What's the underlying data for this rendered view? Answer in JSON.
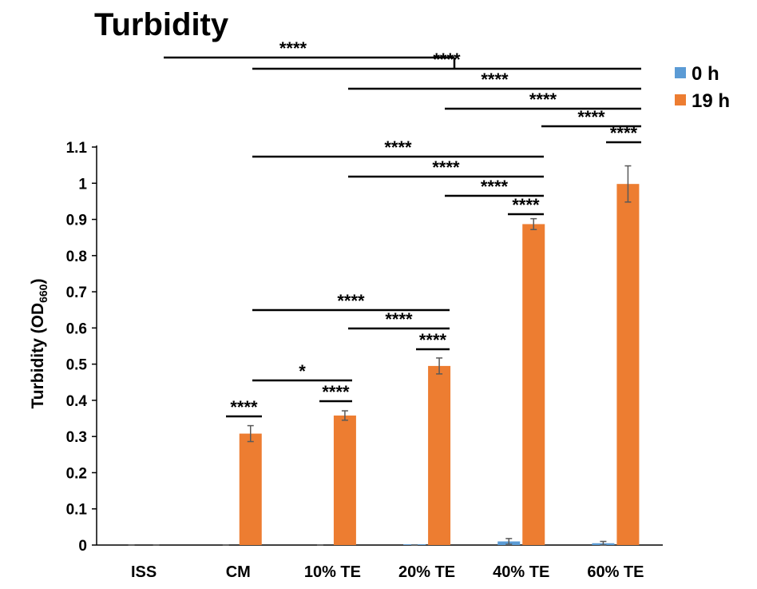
{
  "chart_data": {
    "type": "bar",
    "title": "Turbidity",
    "ylabel": "Turbidity (OD",
    "ylabel_sub": "660",
    "ylabel_close": ")",
    "xlabel": "",
    "ylim": [
      0,
      1.1
    ],
    "yticks": [
      {
        "value": 0,
        "label": "0"
      },
      {
        "value": 0.1,
        "label": "0.1"
      },
      {
        "value": 0.2,
        "label": "0.2"
      },
      {
        "value": 0.3,
        "label": "0.3"
      },
      {
        "value": 0.4,
        "label": "0.4"
      },
      {
        "value": 0.5,
        "label": "0.5"
      },
      {
        "value": 0.6,
        "label": "0.6"
      },
      {
        "value": 0.7,
        "label": "0.7"
      },
      {
        "value": 0.8,
        "label": "0.8"
      },
      {
        "value": 0.9,
        "label": "0.9"
      },
      {
        "value": 1,
        "label": "1"
      },
      {
        "value": 1.1,
        "label": "1.1"
      }
    ],
    "categories": [
      "ISS",
      "CM",
      "10%  TE",
      "20%  TE",
      "40%  TE",
      "60%  TE"
    ],
    "series": [
      {
        "name": "0 h",
        "color": "#5b9bd5",
        "values": [
          0,
          0,
          0,
          0.002,
          0.01,
          0.005
        ],
        "errors": [
          0,
          0,
          0,
          0,
          0.008,
          0.005
        ]
      },
      {
        "name": "19 h",
        "color": "#ed7d31",
        "values": [
          0,
          0.308,
          0.358,
          0.495,
          0.887,
          0.998
        ],
        "errors": [
          0,
          0.022,
          0.013,
          0.022,
          0.015,
          0.05
        ]
      }
    ],
    "legend_position": "top-right",
    "grid": false,
    "significance": [
      {
        "from": 0,
        "to": "all",
        "label": "****"
      },
      {
        "from": 1,
        "to": 5,
        "label": "****"
      },
      {
        "from": 2,
        "to": 5,
        "label": "****"
      },
      {
        "from": 3,
        "to": 5,
        "label": "****"
      },
      {
        "from": 4,
        "to": 5,
        "label": "****"
      },
      {
        "from": 5,
        "to": 5,
        "label": "****"
      },
      {
        "from": 1,
        "to": 4,
        "label": "****"
      },
      {
        "from": 2,
        "to": 4,
        "label": "****"
      },
      {
        "from": 3,
        "to": 4,
        "label": "****"
      },
      {
        "from": 4,
        "to": 4,
        "label": "****"
      },
      {
        "from": 1,
        "to": 3,
        "label": "****"
      },
      {
        "from": 2,
        "to": 3,
        "label": "****"
      },
      {
        "from": 3,
        "to": 3,
        "label": "****"
      },
      {
        "from": 1,
        "to": 2,
        "label": "*"
      },
      {
        "from": 2,
        "to": 2,
        "label": "****"
      },
      {
        "from": 1,
        "to": 1,
        "label": "****"
      }
    ]
  }
}
